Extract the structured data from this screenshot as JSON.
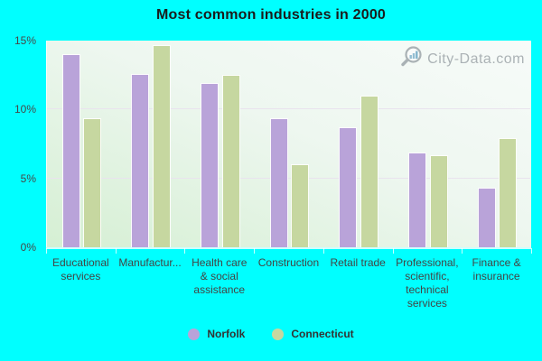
{
  "watermark": {
    "text": "City-Data.com"
  },
  "chart_data": {
    "type": "bar",
    "title": "Most common industries in 2000",
    "categories": [
      "Educational\nservices",
      "Manufactur...",
      "Health care\n& social\nassistance",
      "Construction",
      "Retail trade",
      "Professional,\nscientific,\ntechnical\nservices",
      "Finance &\ninsurance"
    ],
    "series": [
      {
        "name": "Norfolk",
        "color": "#b9a3d9",
        "values": [
          14.0,
          12.6,
          11.9,
          9.4,
          8.7,
          6.9,
          4.3
        ]
      },
      {
        "name": "Connecticut",
        "color": "#c6d7a0",
        "values": [
          9.4,
          14.7,
          12.5,
          6.0,
          11.0,
          6.7,
          7.9
        ]
      }
    ],
    "xlabel": "",
    "ylabel": "",
    "ylim": [
      0,
      15
    ],
    "yticks": [
      0,
      5,
      10,
      15
    ],
    "ytick_labels": [
      "0%",
      "5%",
      "10%",
      "15%"
    ],
    "grid": "horizontal",
    "legend_position": "bottom"
  },
  "colors": {
    "background": "#00ffff",
    "plot_gradient_start": "#d5efd3",
    "plot_gradient_end": "#f7fbf9",
    "gridline": "#e9e3ee",
    "title_text": "#1b1b1b",
    "axis_text": "#444444",
    "legend_text": "#333333",
    "watermark_text": "#9ba3a7"
  }
}
